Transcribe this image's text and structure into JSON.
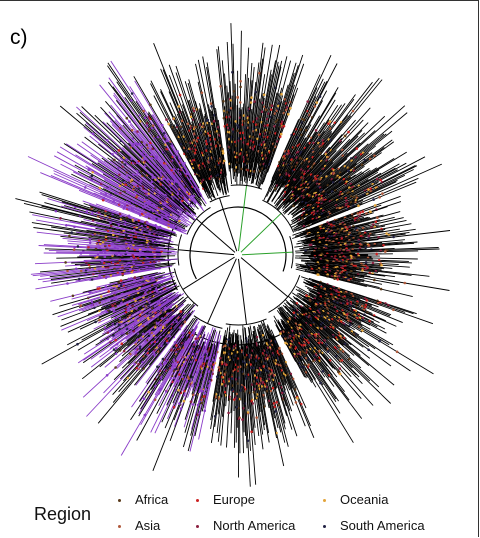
{
  "panel": {
    "label": "c)"
  },
  "legend": {
    "title": "Region",
    "items": [
      {
        "label": "Africa",
        "color": "#5a3a1a"
      },
      {
        "label": "Europe",
        "color": "#cc2222"
      },
      {
        "label": "Oceania",
        "color": "#e3a43a"
      },
      {
        "label": "Asia",
        "color": "#b05a3c"
      },
      {
        "label": "North America",
        "color": "#8b2040"
      },
      {
        "label": "South America",
        "color": "#222244"
      }
    ]
  },
  "tree": {
    "branch_color": "#000000",
    "clade_highlight_color": "#8a3cc8",
    "root_edge_color": "#2aa02a"
  }
}
